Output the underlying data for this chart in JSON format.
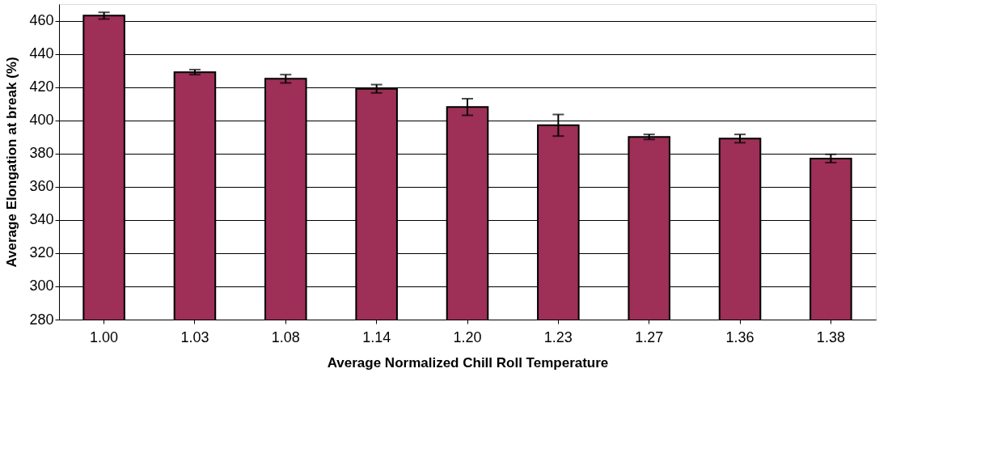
{
  "chart_data": {
    "type": "bar",
    "xlabel": "Average Normalized Chill Roll Temperature",
    "ylabel": "Average Elongation at break (%)",
    "categories": [
      "1.00",
      "1.03",
      "1.08",
      "1.14",
      "1.20",
      "1.23",
      "1.27",
      "1.36",
      "1.38"
    ],
    "values": [
      463,
      429,
      425,
      419,
      408,
      397,
      390,
      389,
      377
    ],
    "errors": [
      2,
      1.5,
      2.5,
      2.5,
      5,
      6.5,
      1.5,
      2.5,
      2.5
    ],
    "color": "#9e2f57",
    "ylim": [
      280,
      470
    ],
    "yticks": [
      280,
      300,
      320,
      340,
      360,
      380,
      400,
      420,
      440,
      460
    ],
    "grid": "y"
  }
}
